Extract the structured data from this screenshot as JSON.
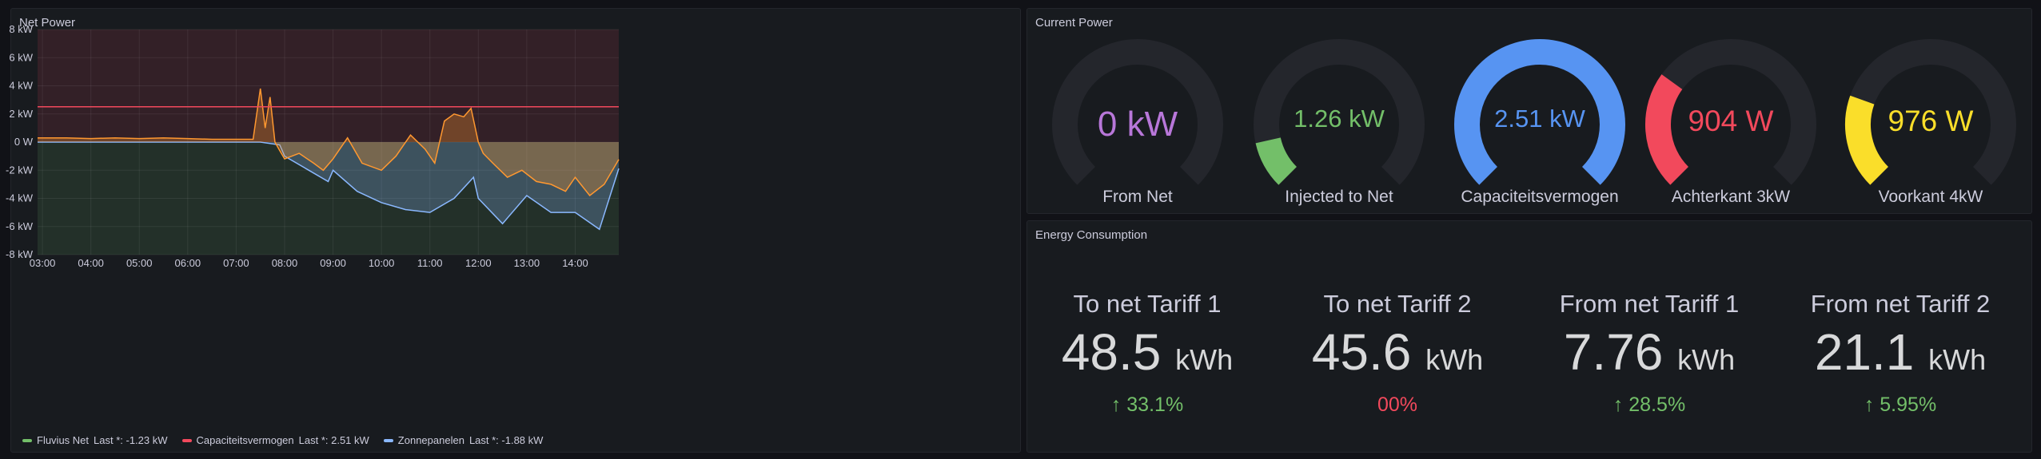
{
  "net_power": {
    "title": "Net Power",
    "legend": [
      {
        "color": "#73bf69",
        "name": "Fluvius Net",
        "last": "Last *: -1.23 kW"
      },
      {
        "color": "#f2495c",
        "name": "Capaciteitsvermogen",
        "last": "Last *: 2.51 kW"
      },
      {
        "color": "#8ab8ff",
        "name": "Zonnepanelen",
        "last": "Last *: -1.88 kW"
      }
    ]
  },
  "chart_data": {
    "type": "line",
    "title": "Net Power",
    "x_ticks": [
      "03:00",
      "04:00",
      "05:00",
      "06:00",
      "07:00",
      "08:00",
      "09:00",
      "10:00",
      "11:00",
      "12:00",
      "13:00",
      "14:00"
    ],
    "y_ticks": [
      "8 kW",
      "6 kW",
      "4 kW",
      "2 kW",
      "0 W",
      "-2 kW",
      "-4 kW",
      "-6 kW",
      "-8 kW"
    ],
    "ylim": [
      -8,
      8
    ],
    "thresholds": {
      "above_color": "#f2495c",
      "below_color": "#73bf69",
      "at": 0
    },
    "series": [
      {
        "name": "Fluvius Net",
        "color": "#ff9830",
        "x": [
          2.9,
          3.5,
          4.0,
          4.5,
          5.0,
          5.5,
          6.0,
          6.5,
          7.0,
          7.35,
          7.5,
          7.6,
          7.7,
          7.8,
          7.9,
          8.0,
          8.3,
          8.6,
          8.8,
          9.0,
          9.3,
          9.6,
          10.0,
          10.3,
          10.6,
          10.9,
          11.1,
          11.3,
          11.5,
          11.7,
          11.85,
          12.0,
          12.1,
          12.3,
          12.6,
          12.9,
          13.2,
          13.5,
          13.8,
          14.0,
          14.3,
          14.6,
          14.9
        ],
        "y": [
          0.3,
          0.3,
          0.25,
          0.3,
          0.25,
          0.3,
          0.25,
          0.2,
          0.2,
          0.2,
          3.8,
          1.0,
          3.2,
          0.0,
          -0.6,
          -1.2,
          -0.8,
          -1.5,
          -2.0,
          -1.2,
          0.3,
          -1.5,
          -2.0,
          -1.0,
          0.5,
          -0.5,
          -1.5,
          1.5,
          2.0,
          1.8,
          2.4,
          0.0,
          -0.8,
          -1.5,
          -2.5,
          -2.0,
          -2.8,
          -3.0,
          -3.5,
          -2.5,
          -3.8,
          -3.0,
          -1.23
        ]
      },
      {
        "name": "Capaciteitsvermogen",
        "color": "#f2495c",
        "x": [
          2.9,
          14.9
        ],
        "y": [
          2.51,
          2.51
        ]
      },
      {
        "name": "Zonnepanelen",
        "color": "#8ab8ff",
        "x": [
          2.9,
          7.5,
          7.9,
          8.0,
          8.5,
          8.9,
          9.0,
          9.5,
          10.0,
          10.5,
          11.0,
          11.5,
          11.9,
          12.0,
          12.5,
          13.0,
          13.5,
          14.0,
          14.5,
          14.9
        ],
        "y": [
          0,
          0,
          -0.2,
          -1.0,
          -2.0,
          -2.8,
          -2.0,
          -3.5,
          -4.3,
          -4.8,
          -5.0,
          -4.0,
          -2.5,
          -4.0,
          -5.8,
          -3.8,
          -5.0,
          -5.0,
          -6.2,
          -1.88
        ]
      }
    ]
  },
  "current_power": {
    "title": "Current Power",
    "gauges": [
      {
        "value": "0 kW",
        "label": "From Net",
        "color": "#b877d9",
        "fraction": 0.0,
        "font_size": "44px"
      },
      {
        "value": "1.26 kW",
        "label": "Injected to Net",
        "color": "#73bf69",
        "fraction": 0.12,
        "font_size": "31px"
      },
      {
        "value": "2.51 kW",
        "label": "Capaciteitsvermogen",
        "color": "#5794f2",
        "fraction": 1.0,
        "font_size": "31px"
      },
      {
        "value": "904 W",
        "label": "Achterkant 3kW",
        "color": "#f2495c",
        "fraction": 0.3,
        "font_size": "37px"
      },
      {
        "value": "976 W",
        "label": "Voorkant 4kW",
        "color": "#fade2a",
        "fraction": 0.24,
        "font_size": "37px"
      }
    ]
  },
  "energy_consumption": {
    "title": "Energy Consumption",
    "stats": [
      {
        "title": "To net Tariff 1",
        "value": "48.5",
        "unit": "kWh",
        "change": "33.1%",
        "arrow": "↑",
        "color": "#73bf69"
      },
      {
        "title": "To net Tariff 2",
        "value": "45.6",
        "unit": "kWh",
        "change": "00%",
        "arrow": "",
        "color": "#f2495c"
      },
      {
        "title": "From net Tariff 1",
        "value": "7.76",
        "unit": "kWh",
        "change": "28.5%",
        "arrow": "↑",
        "color": "#73bf69"
      },
      {
        "title": "From net Tariff 2",
        "value": "21.1",
        "unit": "kWh",
        "change": "5.95%",
        "arrow": "↑",
        "color": "#73bf69"
      }
    ]
  }
}
